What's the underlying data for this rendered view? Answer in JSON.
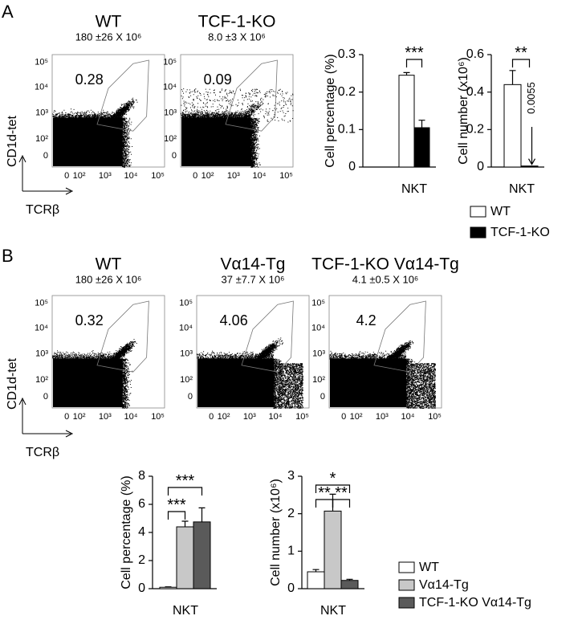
{
  "panels": [
    {
      "label": "A",
      "y_axis": "CD1d-tet",
      "x_axis": "TCRβ",
      "plots": [
        {
          "title": "WT",
          "count": "180 ±26 X 10⁶",
          "gate": 0.28
        },
        {
          "title": "TCF-1-KO",
          "count": "8.0 ±3 X 10⁶",
          "gate": 0.09
        }
      ]
    },
    {
      "label": "B",
      "y_axis": "CD1d-tet",
      "x_axis": "TCRβ",
      "plots": [
        {
          "title": "WT",
          "count": "180 ±26 X 10⁶",
          "gate": 0.32
        },
        {
          "title": "Vα14-Tg",
          "count": "37 ±7.7 X 10⁶",
          "gate": 4.06
        },
        {
          "title": "TCF-1-KO Vα14-Tg",
          "count": "4.1 ±0.5 X 10⁶",
          "gate": 4.2
        }
      ]
    }
  ],
  "flow_ticks": {
    "y": [
      "10⁵",
      "10⁴",
      "10³",
      "10²",
      "0"
    ],
    "x": [
      "0",
      "10²",
      "10³",
      "10⁴",
      "10⁵"
    ]
  },
  "chart_data": [
    {
      "type": "bar",
      "ylabel": "Cell percentage (%)",
      "categories": [
        "NKT"
      ],
      "series": [
        {
          "color": "#ffffff",
          "values": [
            0.245
          ],
          "errors": [
            0.007
          ]
        },
        {
          "color": "#000000",
          "values": [
            0.105
          ],
          "errors": [
            0.02
          ]
        }
      ],
      "ylim": [
        0,
        0.3
      ],
      "yticks": [
        0,
        0.1,
        0.2,
        0.3
      ],
      "annotations": [
        "***"
      ]
    },
    {
      "type": "bar",
      "ylabel": "Cell number (x10⁶)",
      "categories": [
        "NKT"
      ],
      "series": [
        {
          "name": "WT",
          "color": "#ffffff",
          "values": [
            0.44
          ],
          "errors": [
            0.075
          ]
        },
        {
          "name": "TCF-1-KO",
          "color": "#000000",
          "values": [
            0.0055
          ],
          "show_values": true
        }
      ],
      "ylim": [
        0,
        0.6
      ],
      "yticks": [
        0,
        0.2,
        0.4,
        0.6
      ],
      "annotations": [
        "**"
      ],
      "legend": "below"
    },
    {
      "type": "bar",
      "ylabel": "Cell percentage (%)",
      "categories": [
        "NKT"
      ],
      "series": [
        {
          "color": "#ffffff",
          "values": [
            0.1
          ],
          "errors": [
            0.03
          ]
        },
        {
          "color": "#c8c8c8",
          "values": [
            4.4
          ],
          "errors": [
            0.4
          ]
        },
        {
          "color": "#5a5a5a",
          "values": [
            4.75
          ],
          "errors": [
            1.0
          ]
        }
      ],
      "ylim": [
        0,
        8
      ],
      "yticks": [
        0,
        2,
        4,
        6,
        8
      ],
      "annotations": [
        "***",
        "***"
      ]
    },
    {
      "type": "bar",
      "ylabel": "Cell number (x10⁶)",
      "categories": [
        "NKT"
      ],
      "series": [
        {
          "name": "WT",
          "color": "#ffffff",
          "values": [
            0.45
          ],
          "errors": [
            0.06
          ]
        },
        {
          "name": "Vα14-Tg",
          "color": "#c8c8c8",
          "values": [
            2.07
          ],
          "errors": [
            0.45
          ]
        },
        {
          "name": "TCF-1-KO Vα14-Tg",
          "color": "#5a5a5a",
          "values": [
            0.22
          ],
          "errors": [
            0.03
          ]
        }
      ],
      "ylim": [
        0,
        3
      ],
      "yticks": [
        0,
        1,
        2,
        3
      ],
      "annotations": [
        "*",
        "**",
        "**"
      ],
      "legend": "right"
    }
  ]
}
